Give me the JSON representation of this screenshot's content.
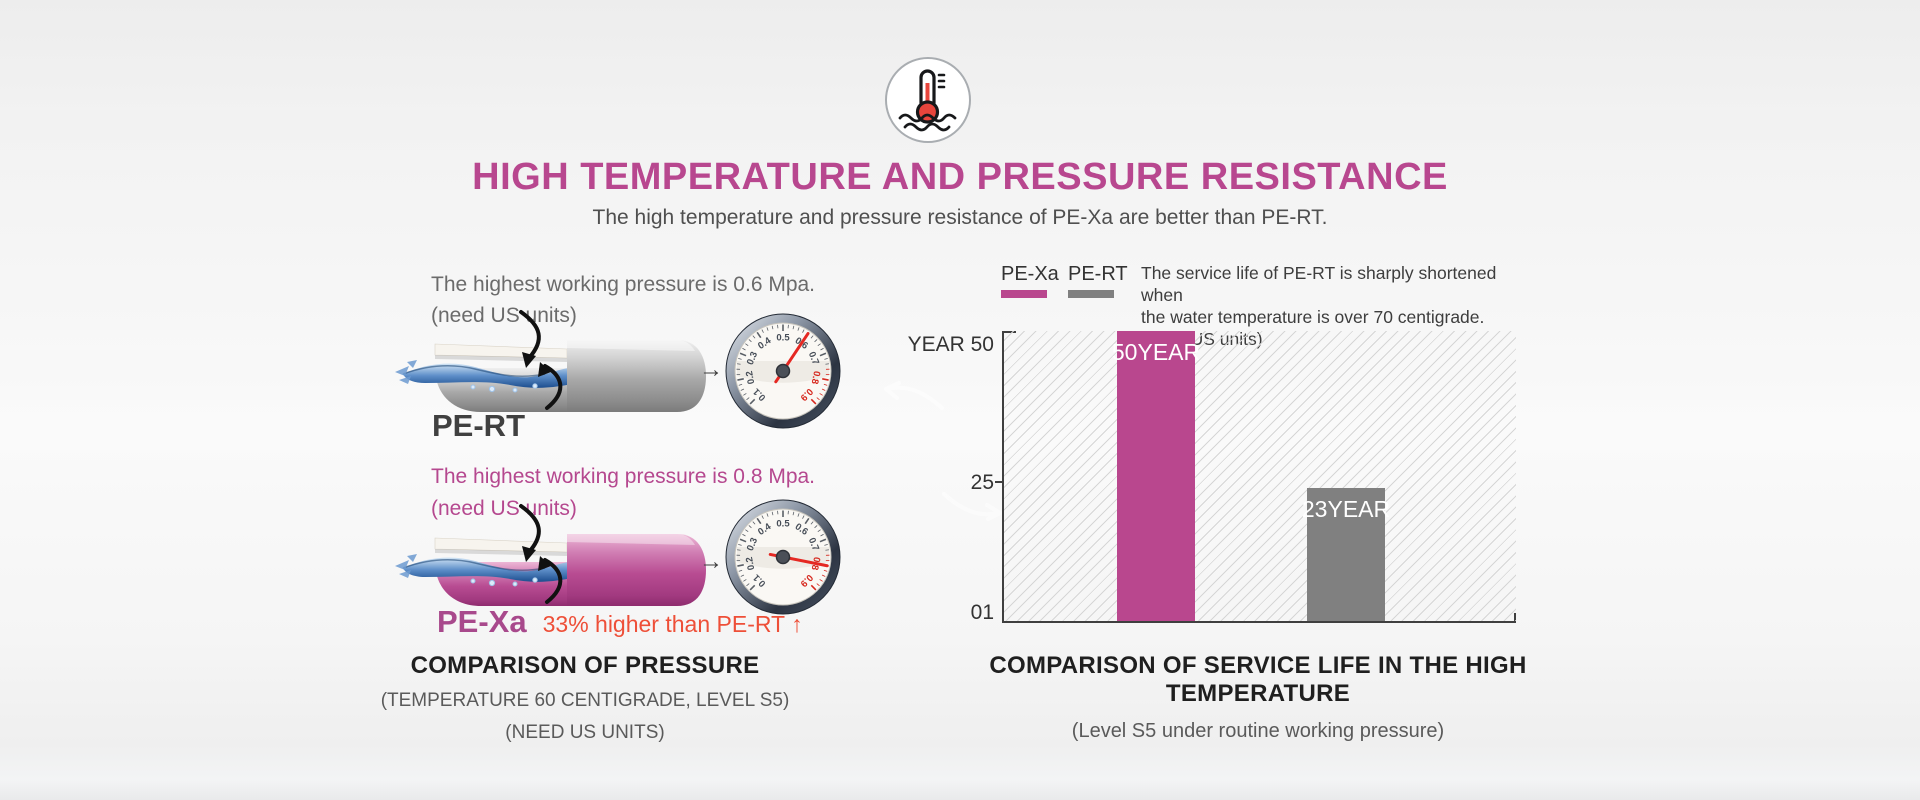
{
  "header": {
    "icon": "thermometer-in-hot-water",
    "title": "HIGH TEMPERATURE AND PRESSURE RESISTANCE",
    "subtitle": "The high temperature and pressure resistance of PE-Xa are better than PE-RT."
  },
  "pressure_panel": {
    "pert": {
      "pressure_line": "The highest working pressure is 0.6 Mpa.",
      "units_note": "(need US units)",
      "label": "PE-RT",
      "gauge_value": 0.6
    },
    "pexa": {
      "pressure_line": "The highest working pressure is 0.8 Mpa.",
      "units_note": "(need US units)",
      "label": "PE-Xa",
      "comparison_note": "33% higher than PE-RT ↑",
      "gauge_value": 0.8
    },
    "right_arrow": "→",
    "caption": {
      "title": "COMPARISON OF PRESSURE",
      "sub1": "(TEMPERATURE 60 CENTIGRADE, LEVEL S5)",
      "sub2": "(NEED US UNITS)"
    }
  },
  "gauge": {
    "scale_labels": [
      "0.1",
      "0.2",
      "0.3",
      "0.4",
      "0.5",
      "0.6",
      "0.7",
      "0.8",
      "0.9"
    ],
    "red_threshold": 0.75,
    "needle_color": "#e52822",
    "number_color": "#474e58",
    "red_number_color": "#d6281e"
  },
  "service_life_panel": {
    "legend": [
      {
        "label": "PE-Xa",
        "color": "#b9478e"
      },
      {
        "label": "PE-RT",
        "color": "#808080"
      }
    ],
    "note_lines": [
      "The service life of PE-RT is sharply shortened when",
      "the water temperature is over 70 centigrade.",
      "(need US units)"
    ],
    "caption": {
      "title": "COMPARISON OF SERVICE LIFE IN THE HIGH TEMPERATURE",
      "sub": "(Level S5 under routine working pressure)"
    }
  },
  "chart_data": {
    "type": "bar",
    "title": "COMPARISON OF SERVICE LIFE IN THE HIGH TEMPERATURE",
    "subtitle": "(Level S5 under routine working pressure)",
    "categories": [
      "PE-Xa",
      "PE-RT"
    ],
    "values": [
      50,
      23
    ],
    "bar_labels": [
      "50YEAR",
      "23YEAR"
    ],
    "bar_colors": [
      "#b9478e",
      "#808080"
    ],
    "ylabel": "YEAR",
    "ytick_labels": [
      "YEAR 50",
      "25",
      "01"
    ],
    "ylim": [
      0,
      50
    ],
    "grid": "diagonal-hatch-background",
    "legend_position": "top-left"
  },
  "colors": {
    "accent_magenta": "#b8478f",
    "accent_red": "#ee4f38",
    "gray_bar": "#808080",
    "axis": "#3f3f3f",
    "text_gray": "#6b6b6b"
  }
}
